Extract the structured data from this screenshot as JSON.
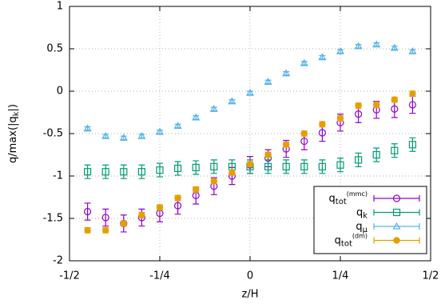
{
  "chart_data": {
    "type": "errorbar",
    "x_label": "z/H",
    "y_label": {
      "main": "q/max(|q",
      "sub": "k",
      "end": "|)"
    },
    "x": [
      -0.45,
      -0.4,
      -0.35,
      -0.3,
      -0.25,
      -0.2,
      -0.15,
      -0.1,
      -0.05,
      0,
      0.05,
      0.1,
      0.15,
      0.2,
      0.25,
      0.3,
      0.35,
      0.4,
      0.45
    ],
    "xlim": [
      -0.5,
      0.5
    ],
    "xticks": [
      {
        "value": -0.5,
        "label": "-1/2"
      },
      {
        "value": -0.25,
        "label": "-1/4"
      },
      0,
      {
        "value": 0.25,
        "label": "1/4"
      },
      {
        "value": 0.5,
        "label": "1/2"
      }
    ],
    "ylim": [
      -2,
      1
    ],
    "yticks": [
      -2,
      -1.5,
      -1,
      -0.5,
      0,
      0.5,
      1
    ],
    "grid": true,
    "legend": "lower right",
    "series": [
      {
        "name": {
          "base": "q",
          "sub": "tot",
          "sup": "(mmc)"
        },
        "color": "#9400d3",
        "marker": "circle-open",
        "values": [
          -1.42,
          -1.49,
          -1.56,
          -1.49,
          -1.44,
          -1.35,
          -1.23,
          -1.12,
          -1.0,
          -0.87,
          -0.79,
          -0.68,
          -0.59,
          -0.49,
          -0.37,
          -0.27,
          -0.22,
          -0.21,
          -0.16
        ],
        "errors": [
          0.1,
          0.1,
          0.1,
          0.1,
          0.1,
          0.1,
          0.1,
          0.1,
          0.1,
          0.1,
          0.1,
          0.1,
          0.1,
          0.1,
          0.1,
          0.1,
          0.1,
          0.1,
          0.1
        ]
      },
      {
        "name": {
          "base": "q",
          "sub": "k"
        },
        "color": "#009e73",
        "marker": "square-open",
        "values": [
          -0.95,
          -0.95,
          -0.95,
          -0.95,
          -0.93,
          -0.91,
          -0.9,
          -0.89,
          -0.89,
          -0.89,
          -0.89,
          -0.89,
          -0.89,
          -0.89,
          -0.87,
          -0.81,
          -0.75,
          -0.7,
          -0.63
        ],
        "errors": [
          0.08,
          0.08,
          0.08,
          0.08,
          0.08,
          0.08,
          0.08,
          0.08,
          0.08,
          0.08,
          0.08,
          0.08,
          0.08,
          0.08,
          0.08,
          0.08,
          0.08,
          0.08,
          0.08
        ]
      },
      {
        "name": {
          "base": "q",
          "sub": "μ"
        },
        "color": "#56b4e9",
        "marker": "triangle-open",
        "values": [
          -0.44,
          -0.53,
          -0.55,
          -0.53,
          -0.48,
          -0.41,
          -0.31,
          -0.21,
          -0.12,
          -0.02,
          0.11,
          0.21,
          0.33,
          0.4,
          0.47,
          0.53,
          0.55,
          0.51,
          0.47
        ],
        "errors": [
          0.02,
          0.02,
          0.02,
          0.02,
          0.02,
          0.02,
          0.02,
          0.02,
          0.02,
          0.02,
          0.02,
          0.02,
          0.02,
          0.02,
          0.02,
          0.02,
          0.02,
          0.02,
          0.02
        ]
      },
      {
        "name": {
          "base": "q",
          "sub": "tot",
          "sup": "(dm)"
        },
        "color": "#e69f00",
        "marker": "circle-filled",
        "values": [
          -1.64,
          -1.64,
          -1.56,
          -1.46,
          -1.37,
          -1.26,
          -1.16,
          -1.06,
          -0.96,
          -0.86,
          -0.75,
          -0.63,
          -0.5,
          -0.39,
          -0.32,
          -0.17,
          -0.16,
          -0.1,
          -0.03
        ],
        "errors": [
          0.03,
          0.03,
          0.03,
          0.03,
          0.03,
          0.03,
          0.03,
          0.03,
          0.03,
          0.03,
          0.03,
          0.03,
          0.03,
          0.03,
          0.03,
          0.03,
          0.03,
          0.03,
          0.03
        ]
      }
    ]
  }
}
